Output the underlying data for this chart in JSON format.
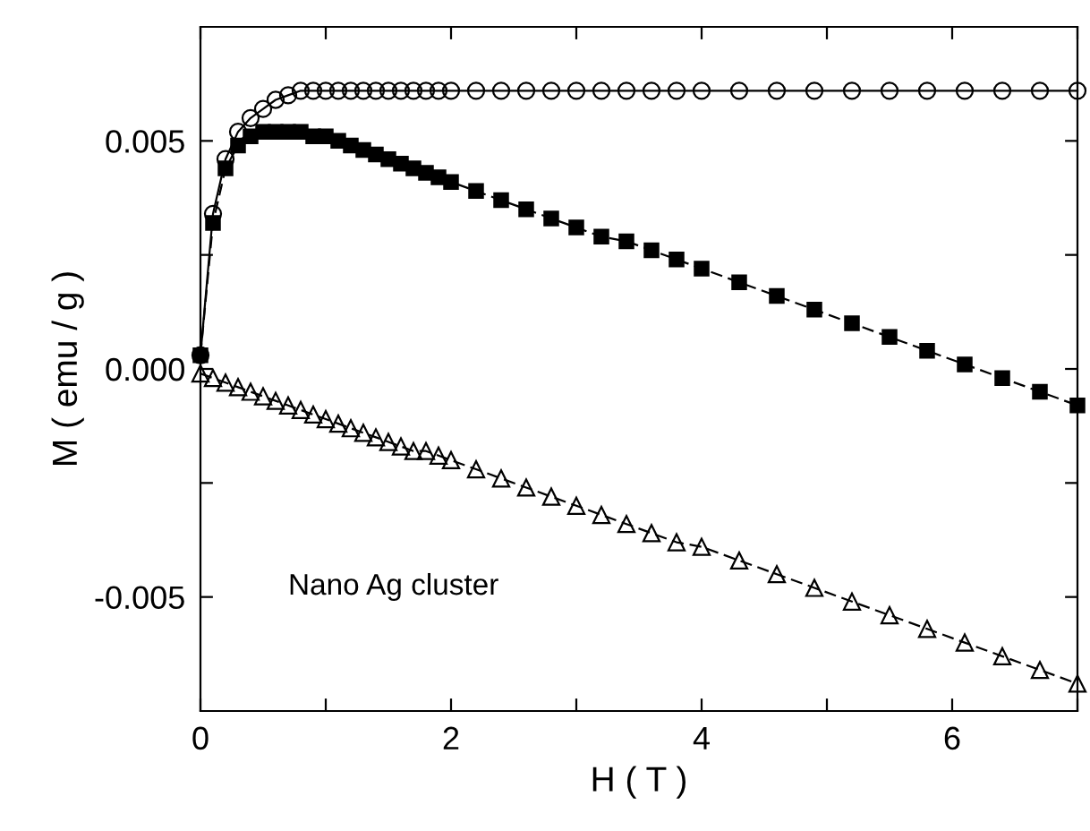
{
  "chart_data": {
    "type": "line",
    "xlabel": "H ( T )",
    "ylabel": "M ( emu / g )",
    "xlim": [
      0,
      7
    ],
    "ylim": [
      -0.0075,
      0.0075
    ],
    "xticks": [
      0,
      {
        "value": 1,
        "label": null
      },
      2,
      {
        "value": 3,
        "label": null
      },
      4,
      {
        "value": 5,
        "label": null
      },
      6,
      {
        "value": 7,
        "label": null
      }
    ],
    "yticks": [
      -0.005,
      {
        "value": -0.0025,
        "label": null
      },
      {
        "value": 0,
        "label": "0.000"
      },
      {
        "value": 0.0025,
        "label": null
      },
      0.005
    ],
    "grid": false,
    "legend": false,
    "annotations": [
      "Nano Ag cluster"
    ],
    "series": [
      {
        "color": "#000000",
        "marker": "circle",
        "line_style": "solid",
        "x": [
          0,
          0.1,
          0.2,
          0.3,
          0.4,
          0.5,
          0.6,
          0.7,
          0.8,
          0.9,
          1.0,
          1.1,
          1.2,
          1.3,
          1.4,
          1.5,
          1.6,
          1.7,
          1.8,
          1.9,
          2.0,
          2.2,
          2.4,
          2.6,
          2.8,
          3.0,
          3.2,
          3.4,
          3.6,
          3.8,
          4.0,
          4.3,
          4.6,
          4.9,
          5.2,
          5.5,
          5.8,
          6.1,
          6.4,
          6.7,
          7.0
        ],
        "values": [
          0.0003,
          0.0034,
          0.0046,
          0.0052,
          0.0055,
          0.0057,
          0.0059,
          0.006,
          0.0061,
          0.0061,
          0.0061,
          0.0061,
          0.0061,
          0.0061,
          0.0061,
          0.0061,
          0.0061,
          0.0061,
          0.0061,
          0.0061,
          0.0061,
          0.0061,
          0.0061,
          0.0061,
          0.0061,
          0.0061,
          0.0061,
          0.0061,
          0.0061,
          0.0061,
          0.0061,
          0.0061,
          0.0061,
          0.0061,
          0.0061,
          0.0061,
          0.0061,
          0.0061,
          0.0061,
          0.0061,
          0.0061
        ]
      },
      {
        "color": "#000000",
        "marker": "square",
        "line_style": "dashed",
        "x": [
          0,
          0.1,
          0.2,
          0.3,
          0.4,
          0.5,
          0.6,
          0.7,
          0.8,
          0.9,
          1.0,
          1.1,
          1.2,
          1.3,
          1.4,
          1.5,
          1.6,
          1.7,
          1.8,
          1.9,
          2.0,
          2.2,
          2.4,
          2.6,
          2.8,
          3.0,
          3.2,
          3.4,
          3.6,
          3.8,
          4.0,
          4.3,
          4.6,
          4.9,
          5.2,
          5.5,
          5.8,
          6.1,
          6.4,
          6.7,
          7.0
        ],
        "values": [
          0.0003,
          0.0032,
          0.0044,
          0.0049,
          0.0051,
          0.0052,
          0.0052,
          0.0052,
          0.0052,
          0.0051,
          0.0051,
          0.005,
          0.0049,
          0.0048,
          0.0047,
          0.0046,
          0.0045,
          0.0044,
          0.0043,
          0.0042,
          0.0041,
          0.0039,
          0.0037,
          0.0035,
          0.0033,
          0.0031,
          0.0029,
          0.0028,
          0.0026,
          0.0024,
          0.0022,
          0.0019,
          0.0016,
          0.0013,
          0.001,
          0.0007,
          0.0004,
          0.0001,
          -0.0002,
          -0.0005,
          -0.0008
        ]
      },
      {
        "color": "#000000",
        "marker": "triangle",
        "line_style": "dashed",
        "x": [
          0,
          0.1,
          0.2,
          0.3,
          0.4,
          0.5,
          0.6,
          0.7,
          0.8,
          0.9,
          1.0,
          1.1,
          1.2,
          1.3,
          1.4,
          1.5,
          1.6,
          1.7,
          1.8,
          1.9,
          2.0,
          2.2,
          2.4,
          2.6,
          2.8,
          3.0,
          3.2,
          3.4,
          3.6,
          3.8,
          4.0,
          4.3,
          4.6,
          4.9,
          5.2,
          5.5,
          5.8,
          6.1,
          6.4,
          6.7,
          7.0
        ],
        "values": [
          -0.0001,
          -0.0002,
          -0.0003,
          -0.0004,
          -0.0005,
          -0.0006,
          -0.0007,
          -0.0008,
          -0.0009,
          -0.001,
          -0.0011,
          -0.0012,
          -0.0013,
          -0.0014,
          -0.0015,
          -0.0016,
          -0.0017,
          -0.0018,
          -0.0018,
          -0.0019,
          -0.002,
          -0.0022,
          -0.0024,
          -0.0026,
          -0.0028,
          -0.003,
          -0.0032,
          -0.0034,
          -0.0036,
          -0.0038,
          -0.0039,
          -0.0042,
          -0.0045,
          -0.0048,
          -0.0051,
          -0.0054,
          -0.0057,
          -0.006,
          -0.0063,
          -0.0066,
          -0.0069
        ]
      }
    ]
  }
}
